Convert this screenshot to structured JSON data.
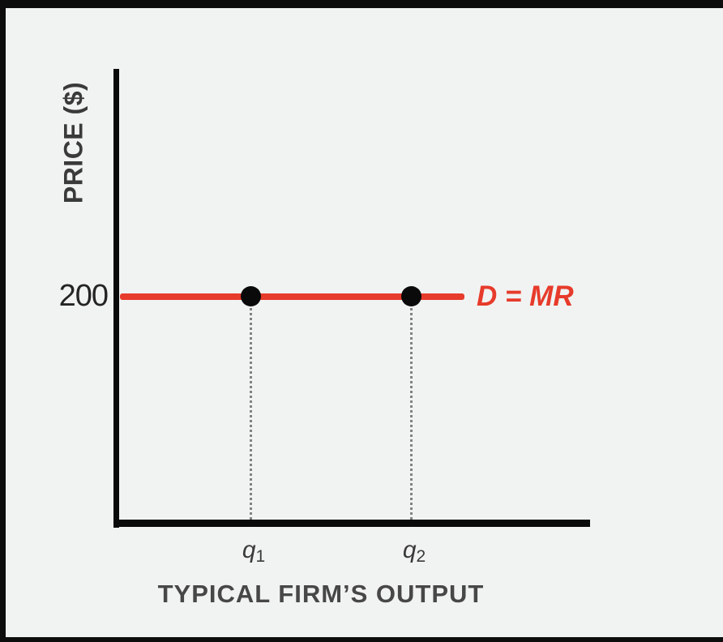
{
  "frame": {
    "border_color": "#0d0d0d",
    "canvas_background": "#f1f3f2"
  },
  "axes": {
    "y_label": "PRICE ($)",
    "x_label": "TYPICAL FIRM’S OUTPUT",
    "y_tick": "200"
  },
  "demand": {
    "label": "D = MR"
  },
  "x_ticks": [
    {
      "base": "q",
      "sub": "1"
    },
    {
      "base": "q",
      "sub": "2"
    }
  ],
  "colors": {
    "demand_red": "#e73b2b",
    "axis_black": "#0a0a0a",
    "label_gray": "#3a3a3a",
    "tick_dark": "#242424",
    "dropline_gray": "#828282"
  },
  "chart_data": {
    "type": "line",
    "title": "",
    "xlabel": "TYPICAL FIRM’S OUTPUT",
    "ylabel": "PRICE ($)",
    "y_ticks": [
      200
    ],
    "x_tick_labels": [
      "q1",
      "q2"
    ],
    "grid": false,
    "legend_position": "inline-right-of-line",
    "series": [
      {
        "name": "D = MR",
        "description": "Horizontal (perfectly elastic) demand / marginal revenue line at price 200, spanning from the y-axis to beyond q2",
        "x": [
          "axis",
          "q1",
          "q2",
          "line-end"
        ],
        "values": [
          200,
          200,
          200,
          200
        ],
        "color": "#e73b2b"
      }
    ],
    "marked_points": [
      {
        "x": "q1",
        "y": 200,
        "marker": "filled-black-circle",
        "dropline": "dotted-to-x-axis"
      },
      {
        "x": "q2",
        "y": 200,
        "marker": "filled-black-circle",
        "dropline": "dotted-to-x-axis"
      }
    ]
  }
}
